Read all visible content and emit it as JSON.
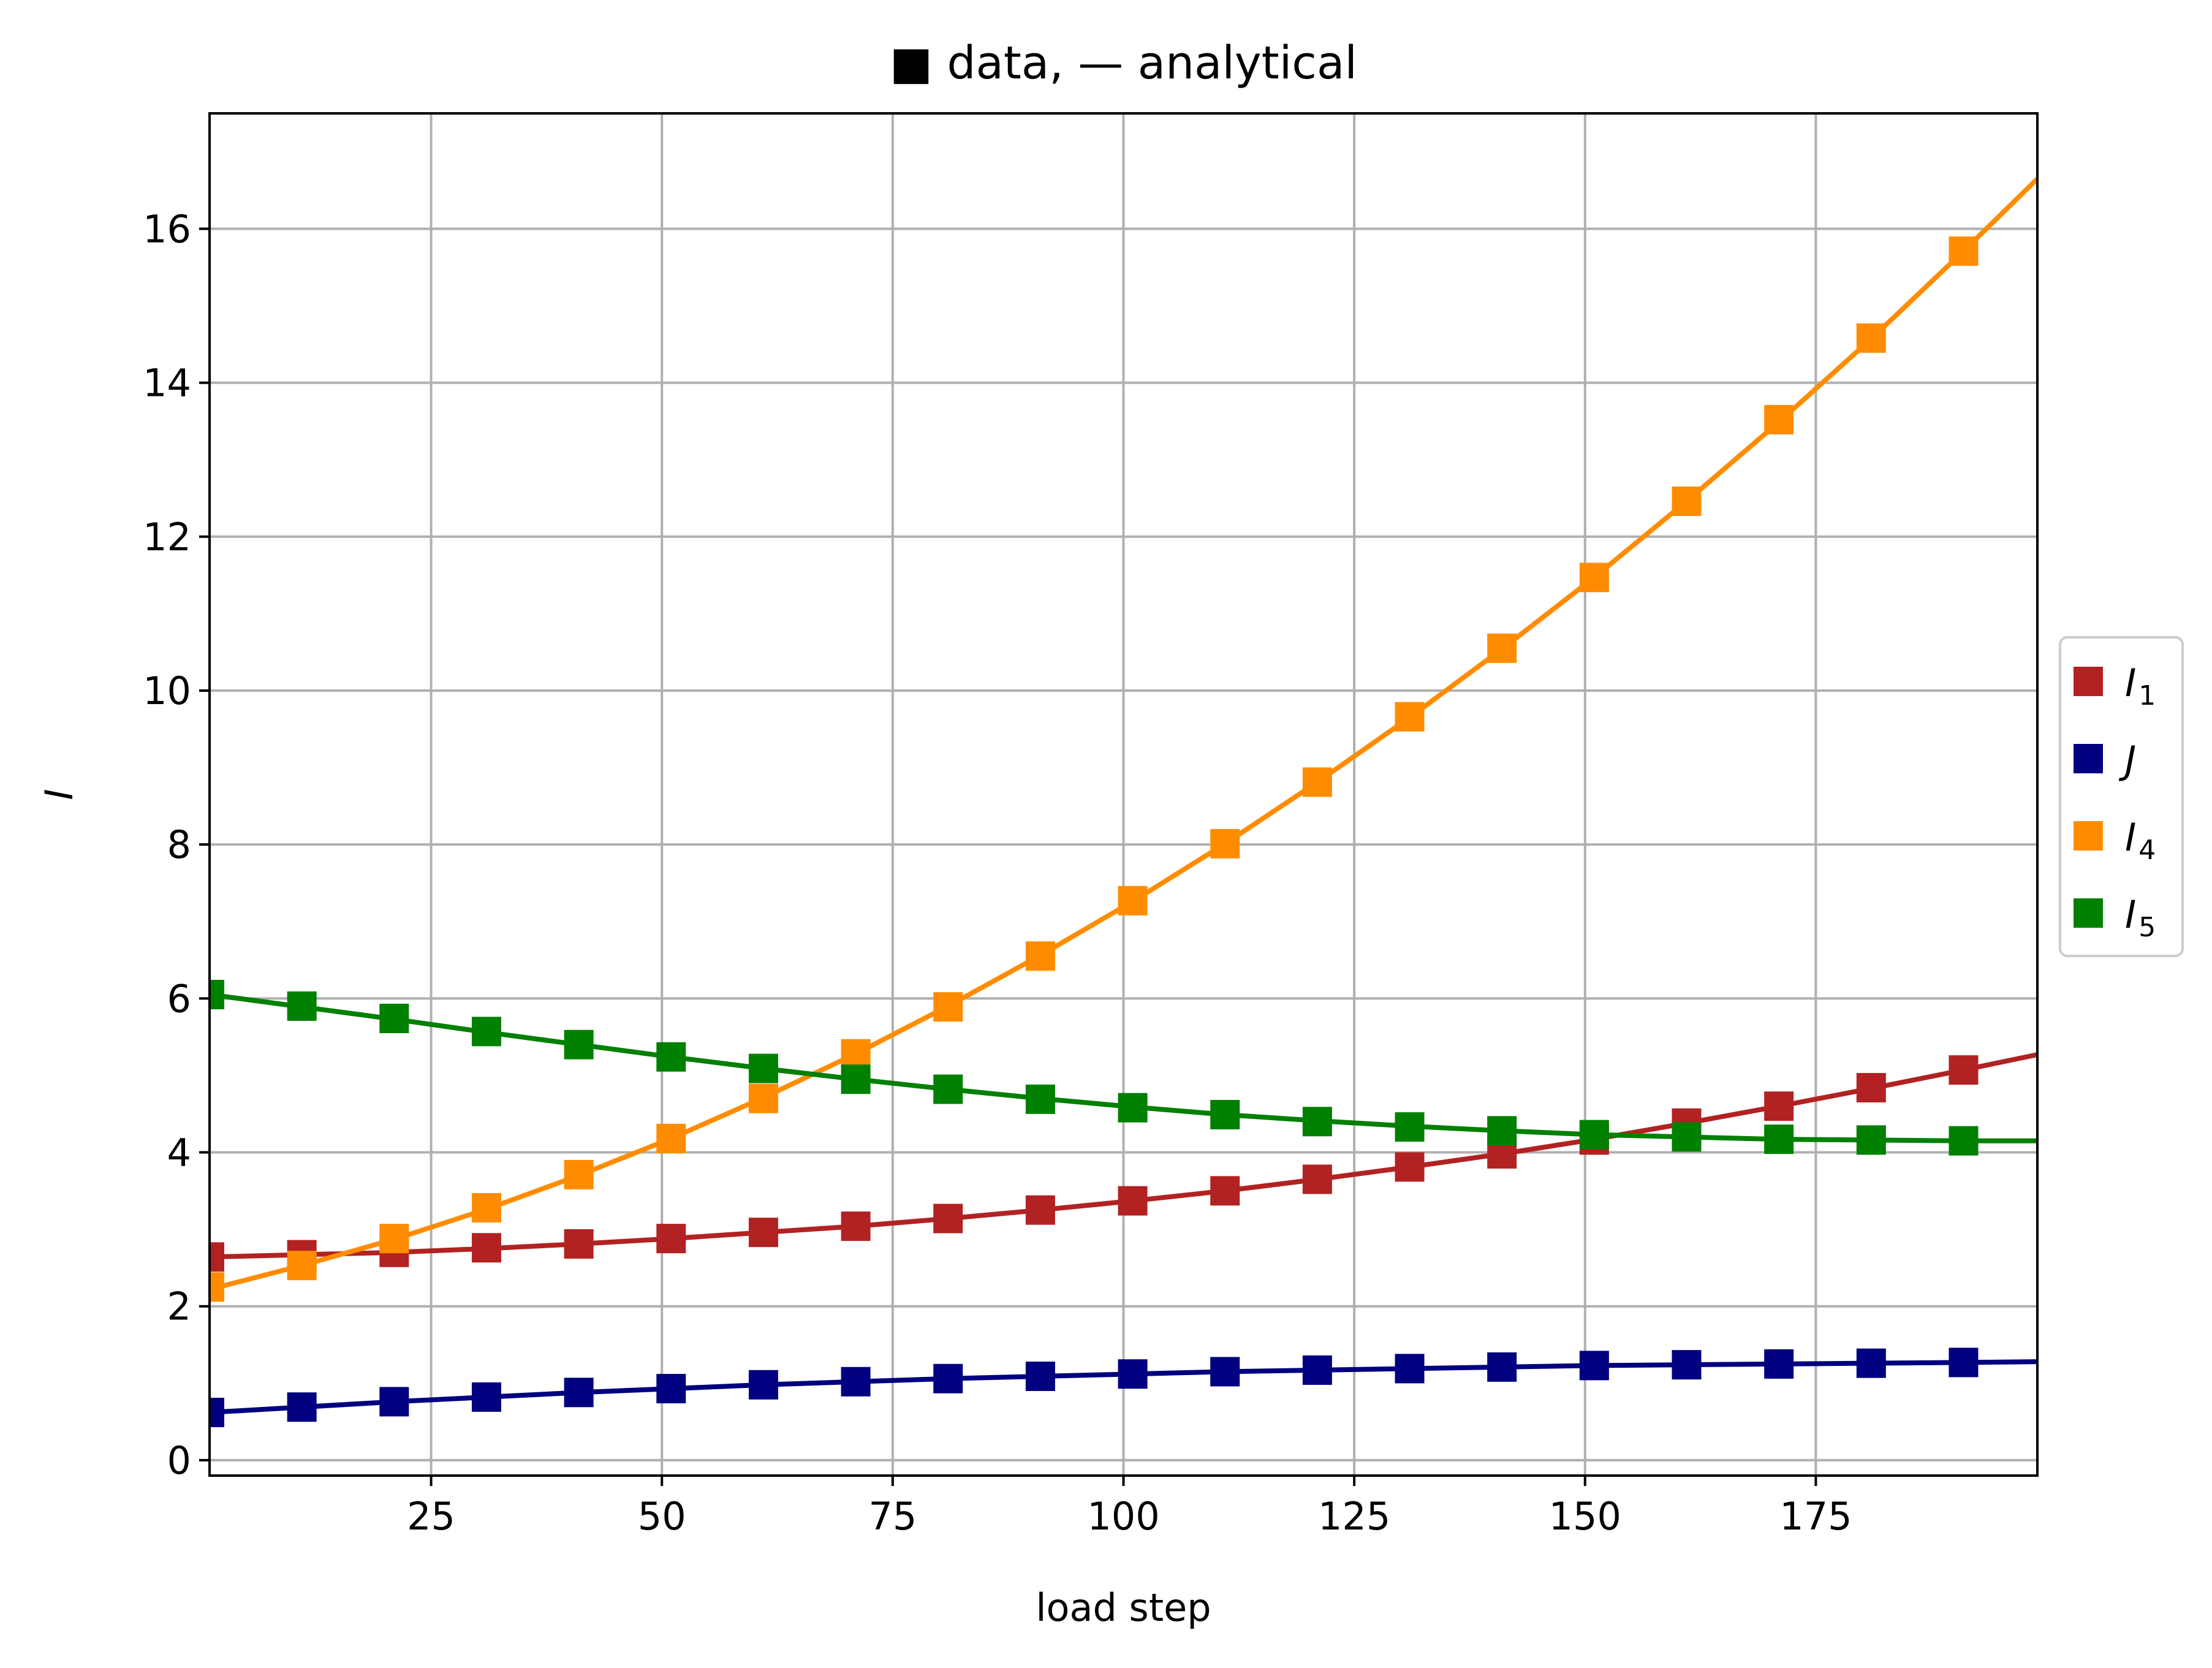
{
  "chart_data": {
    "type": "line",
    "title": "■ data, — analytical",
    "xlabel": "load step",
    "ylabel": "I",
    "xlim": [
      1,
      199
    ],
    "ylim": [
      -0.2,
      17.5
    ],
    "xticks": [
      25,
      50,
      75,
      100,
      125,
      150,
      175
    ],
    "yticks": [
      0,
      2,
      4,
      6,
      8,
      10,
      12,
      14,
      16
    ],
    "grid": true,
    "legend_position": "center-right, outside plot",
    "marker_x": [
      1,
      11,
      21,
      31,
      41,
      51,
      61,
      71,
      81,
      91,
      101,
      111,
      121,
      131,
      141,
      151,
      161,
      171,
      181,
      191
    ],
    "line_x": [
      1,
      11,
      21,
      31,
      41,
      51,
      61,
      71,
      81,
      91,
      101,
      111,
      121,
      131,
      141,
      151,
      161,
      171,
      181,
      191,
      199
    ],
    "series": [
      {
        "name": "I",
        "subscript": "1",
        "color": "#b22222",
        "markers": [
          2.64,
          2.67,
          2.7,
          2.76,
          2.81,
          2.88,
          2.96,
          3.04,
          3.14,
          3.25,
          3.37,
          3.5,
          3.65,
          3.81,
          3.98,
          4.16,
          4.38,
          4.6,
          4.84,
          5.07
        ],
        "line": [
          2.64,
          2.67,
          2.7,
          2.75,
          2.81,
          2.88,
          2.96,
          3.04,
          3.14,
          3.25,
          3.37,
          3.5,
          3.65,
          3.81,
          3.98,
          4.17,
          4.38,
          4.6,
          4.83,
          5.07,
          5.27
        ]
      },
      {
        "name": "J",
        "subscript": "",
        "color": "#000080",
        "markers": [
          0.62,
          0.69,
          0.76,
          0.82,
          0.88,
          0.93,
          0.98,
          1.02,
          1.06,
          1.09,
          1.12,
          1.15,
          1.17,
          1.19,
          1.21,
          1.23,
          1.24,
          1.25,
          1.26,
          1.27
        ],
        "line": [
          0.62,
          0.69,
          0.76,
          0.82,
          0.88,
          0.93,
          0.98,
          1.02,
          1.06,
          1.09,
          1.12,
          1.15,
          1.17,
          1.19,
          1.21,
          1.23,
          1.24,
          1.25,
          1.26,
          1.27,
          1.28
        ]
      },
      {
        "name": "I",
        "subscript": "4",
        "color": "#ff8c00",
        "markers": [
          2.25,
          2.53,
          2.88,
          3.28,
          3.71,
          4.18,
          4.7,
          5.28,
          5.89,
          6.55,
          7.27,
          8.01,
          8.81,
          9.66,
          10.55,
          11.47,
          12.46,
          13.52,
          14.58,
          15.71
        ],
        "line": [
          2.22,
          2.53,
          2.87,
          3.26,
          3.7,
          4.18,
          4.71,
          5.28,
          5.9,
          6.56,
          7.26,
          8.01,
          8.81,
          9.65,
          10.54,
          11.47,
          12.46,
          13.49,
          14.57,
          15.71,
          16.65
        ]
      },
      {
        "name": "I",
        "subscript": "5",
        "color": "#008000",
        "markers": [
          6.05,
          5.9,
          5.74,
          5.57,
          5.4,
          5.24,
          5.09,
          4.95,
          4.82,
          4.69,
          4.58,
          4.49,
          4.4,
          4.33,
          4.28,
          4.23,
          4.2,
          4.17,
          4.16,
          4.15
        ],
        "line": [
          6.05,
          5.89,
          5.73,
          5.56,
          5.4,
          5.24,
          5.09,
          4.95,
          4.82,
          4.7,
          4.59,
          4.49,
          4.41,
          4.34,
          4.28,
          4.23,
          4.2,
          4.17,
          4.16,
          4.15,
          4.15
        ]
      }
    ]
  }
}
